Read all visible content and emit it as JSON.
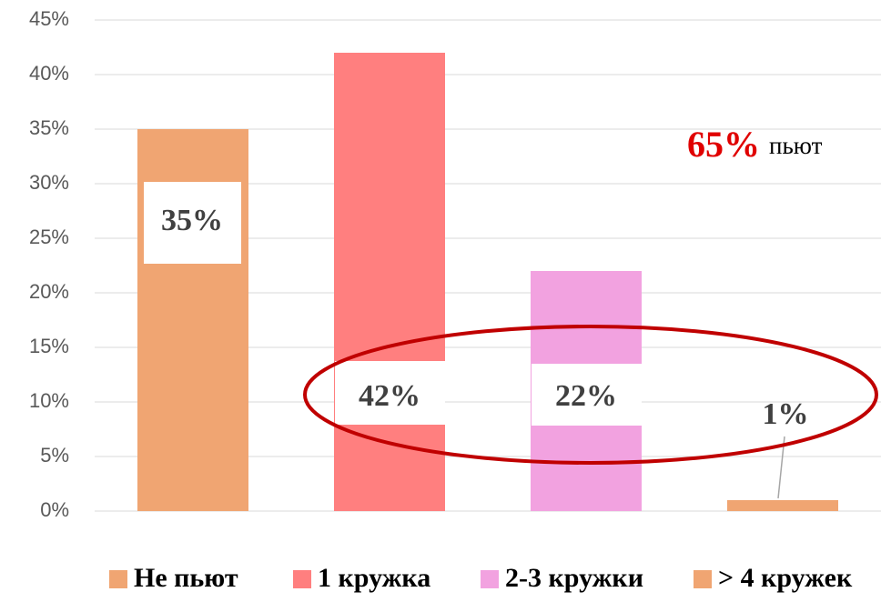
{
  "chart_data": {
    "type": "bar",
    "series": [
      {
        "name": "Не пьют",
        "color": "#f0a572",
        "values": [
          35
        ],
        "value_labels": [
          "35%"
        ]
      },
      {
        "name": "1 кружка",
        "color": "#ff7f7f",
        "values": [
          42
        ],
        "value_labels": [
          "42%"
        ]
      },
      {
        "name": "2-3 кружки",
        "color": "#f2a2e0",
        "values": [
          22
        ],
        "value_labels": [
          "22%"
        ]
      },
      {
        "name": "> 4 кружек",
        "color": "#f0a572",
        "values": [
          1
        ],
        "value_labels": [
          "1%"
        ]
      }
    ],
    "ylim": [
      0,
      45
    ],
    "yticks": [
      {
        "value": 0,
        "label": "0%"
      },
      {
        "value": 5,
        "label": "5%"
      },
      {
        "value": 10,
        "label": "10%"
      },
      {
        "value": 15,
        "label": "15%"
      },
      {
        "value": 20,
        "label": "20%"
      },
      {
        "value": 25,
        "label": "25%"
      },
      {
        "value": 30,
        "label": "30%"
      },
      {
        "value": 35,
        "label": "35%"
      },
      {
        "value": 40,
        "label": "40%"
      },
      {
        "value": 45,
        "label": "45%"
      }
    ],
    "grid": true,
    "legend": "bottom",
    "annotation": {
      "highlight": "65%",
      "text": "пьют"
    }
  }
}
